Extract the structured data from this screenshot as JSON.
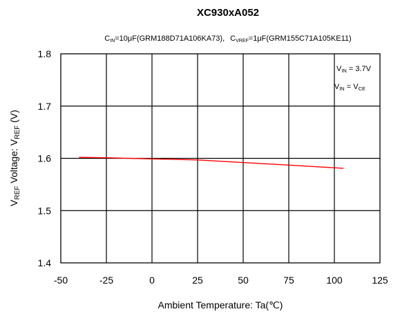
{
  "chart_data": {
    "type": "line",
    "title": "XC930xA052",
    "subtitle": {
      "cin_base": "C",
      "cin_sub": "IN",
      "cin_val": "=10μF(GRM188D71A106KA73),",
      "cvref_base": "C",
      "cvref_sub": "VREF",
      "cvref_val": "=1μF(GRM155C71A105KE11)"
    },
    "xlabel": "Ambient Temperature: Ta(℃)",
    "ylabel": {
      "p1": "V",
      "p1_sub": "REF",
      "p2": " Voltage: V",
      "p2_sub": "REF",
      "p3": " (V)"
    },
    "xlim": [
      -50,
      125
    ],
    "ylim": [
      1.4,
      1.8
    ],
    "x_ticks": [
      -50,
      -25,
      0,
      25,
      50,
      75,
      100,
      125
    ],
    "y_ticks": [
      1.4,
      1.5,
      1.6,
      1.7,
      1.8
    ],
    "x_tick_labels": [
      "-50",
      "-25",
      "0",
      "25",
      "50",
      "75",
      "100",
      "125"
    ],
    "y_tick_labels": [
      "1.4",
      "1.5",
      "1.6",
      "1.7",
      "1.8"
    ],
    "grid": true,
    "annotations": [
      {
        "base": "V",
        "sub": "IN",
        "rest": " = 3.7V"
      },
      {
        "base": "V",
        "sub": "IN",
        "rest": " = V",
        "sub2": "CE"
      }
    ],
    "series": [
      {
        "color": "#ff0000",
        "x": [
          -40,
          -25,
          0,
          25,
          50,
          75,
          105
        ],
        "y": [
          1.602,
          1.601,
          1.599,
          1.597,
          1.592,
          1.587,
          1.581
        ]
      }
    ]
  }
}
